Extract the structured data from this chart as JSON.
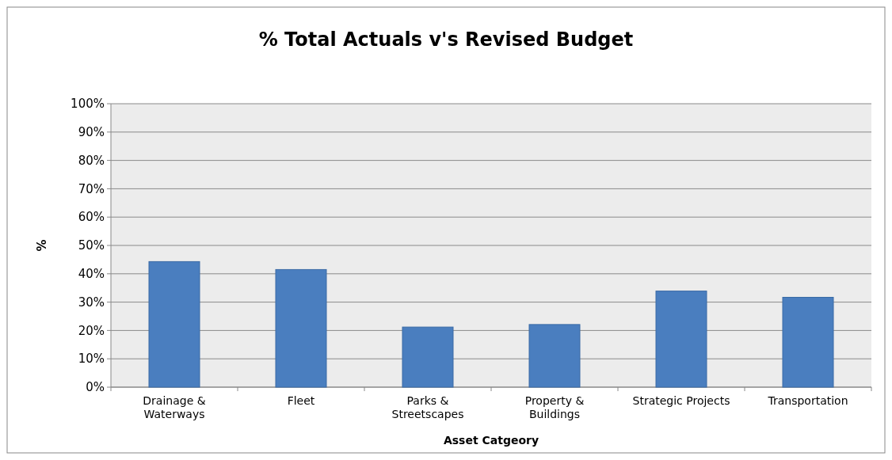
{
  "chart_data": {
    "type": "bar",
    "title": "% Total Actuals v's Revised Budget",
    "xlabel": "Asset Catgeory",
    "ylabel": "%",
    "categories": [
      "Drainage & Waterways",
      "Fleet",
      "Parks & Streetscapes",
      "Property & Buildings",
      "Strategic Projects",
      "Transportation"
    ],
    "values": [
      44.3,
      41.5,
      21.2,
      22.1,
      33.9,
      31.7
    ],
    "color": "#4a7ebf",
    "ylim": [
      0,
      100
    ],
    "yticks": [
      {
        "value": 0,
        "label": "0%"
      },
      {
        "value": 10,
        "label": "10%"
      },
      {
        "value": 20,
        "label": "20%"
      },
      {
        "value": 30,
        "label": "30%"
      },
      {
        "value": 40,
        "label": "40%"
      },
      {
        "value": 50,
        "label": "50%"
      },
      {
        "value": 60,
        "label": "60%"
      },
      {
        "value": 70,
        "label": "70%"
      },
      {
        "value": 80,
        "label": "80%"
      },
      {
        "value": 90,
        "label": "90%"
      },
      {
        "value": 100,
        "label": "100%"
      }
    ],
    "grid": "y"
  }
}
